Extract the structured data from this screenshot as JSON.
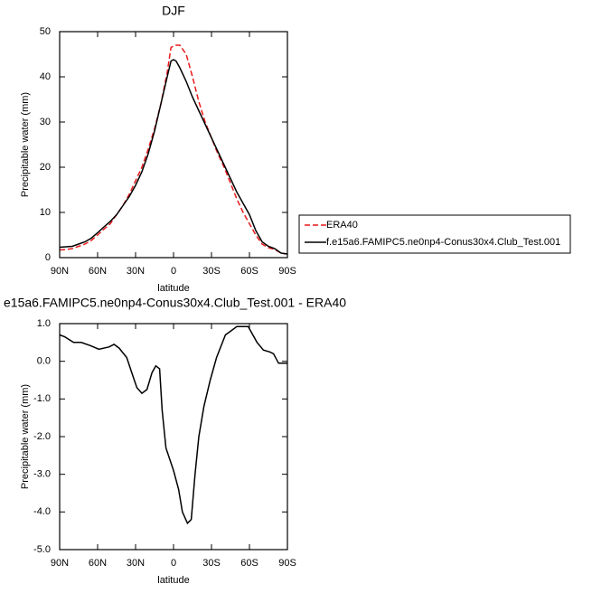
{
  "chart_data": [
    {
      "type": "line",
      "title": "DJF",
      "xlabel": "latitude",
      "ylabel": "Precipitable water (mm)",
      "x": [
        90,
        85,
        80,
        75,
        70,
        65,
        60,
        55,
        50,
        45,
        40,
        35,
        30,
        25,
        20,
        15,
        10,
        5,
        2,
        0,
        -2,
        -5,
        -10,
        -15,
        -20,
        -25,
        -30,
        -35,
        -40,
        -45,
        -50,
        -55,
        -60,
        -65,
        -70,
        -75,
        -80,
        -85,
        -90
      ],
      "xlim": [
        90,
        -90
      ],
      "xticks": [
        {
          "value": 90,
          "label": "90N"
        },
        {
          "value": 60,
          "label": "60N"
        },
        {
          "value": 30,
          "label": "30N"
        },
        0,
        {
          "value": -30,
          "label": "30S"
        },
        {
          "value": -60,
          "label": "60S"
        },
        {
          "value": -90,
          "label": "90S"
        }
      ],
      "ylim": [
        0,
        50
      ],
      "yticks": [
        0,
        10,
        20,
        30,
        40,
        50
      ],
      "legend": "right",
      "series": [
        {
          "name": "ERA40",
          "color": "#e8191c",
          "line_style": "dashed",
          "values": [
            1.7,
            1.8,
            2,
            2.5,
            3,
            3.8,
            5,
            6.3,
            7.5,
            9.5,
            11.5,
            14,
            17,
            20,
            24,
            28.5,
            34,
            41,
            46.5,
            46.8,
            47,
            47,
            45,
            40,
            34.5,
            30,
            26.5,
            23,
            20,
            16.5,
            13,
            10,
            7.5,
            5,
            3,
            2.2,
            1.8,
            1,
            0.8
          ]
        },
        {
          "name": "f.e15a6.FAMIPC5.ne0np4-Conus30x4.Club_Test.001",
          "color": "#000000",
          "line_style": "solid",
          "values": [
            2.3,
            2.4,
            2.5,
            3,
            3.5,
            4.3,
            5.5,
            6.8,
            8,
            9.5,
            11.5,
            13.5,
            16,
            19,
            23,
            28,
            34,
            40,
            43.5,
            43.8,
            43.5,
            42,
            39,
            35.5,
            32.5,
            29.5,
            26.5,
            23.5,
            20.5,
            17.5,
            14.5,
            12,
            9.5,
            6,
            3.5,
            2.5,
            2,
            1,
            0.8
          ]
        }
      ]
    },
    {
      "type": "line",
      "title": "e15a6.FAMIPC5.ne0np4-Conus30x4.Club_Test.001 - ERA40",
      "xlabel": "latitude",
      "ylabel": "Precipitable water (mm)",
      "x": [
        90,
        86,
        79,
        73,
        66,
        59,
        51,
        47,
        43,
        37,
        33,
        29,
        25,
        21,
        17,
        14,
        11,
        9,
        6,
        3,
        0,
        -4,
        -7,
        -11,
        -14,
        -17,
        -20,
        -24,
        -29,
        -34,
        -41,
        -50,
        -59,
        -66,
        -71,
        -76,
        -79,
        -83,
        -90
      ],
      "xlim": [
        90,
        -90
      ],
      "xticks": [
        {
          "value": 90,
          "label": "90N"
        },
        {
          "value": 60,
          "label": "60N"
        },
        {
          "value": 30,
          "label": "30N"
        },
        0,
        {
          "value": -30,
          "label": "30S"
        },
        {
          "value": -60,
          "label": "60S"
        },
        {
          "value": -90,
          "label": "90S"
        }
      ],
      "ylim": [
        -5,
        1
      ],
      "yticks": [
        {
          "value": -5,
          "label": "-5.0"
        },
        {
          "value": -4,
          "label": "-4.0"
        },
        {
          "value": -3,
          "label": "-3.0"
        },
        {
          "value": -2,
          "label": "-2.0"
        },
        {
          "value": -1,
          "label": "-1.0"
        },
        {
          "value": 0,
          "label": "0.0"
        },
        {
          "value": 1,
          "label": "1.0"
        }
      ],
      "series": [
        {
          "color": "#000000",
          "line_style": "solid",
          "values": [
            0.7,
            0.65,
            0.5,
            0.5,
            0.42,
            0.32,
            0.38,
            0.45,
            0.35,
            0.1,
            -0.3,
            -0.7,
            -0.85,
            -0.75,
            -0.3,
            -0.12,
            -0.2,
            -1.3,
            -2.3,
            -2.6,
            -2.9,
            -3.4,
            -4.0,
            -4.3,
            -4.2,
            -3.0,
            -2.0,
            -1.2,
            -0.5,
            0.1,
            0.7,
            0.92,
            0.92,
            0.5,
            0.3,
            0.25,
            0.2,
            -0.05,
            -0.05
          ]
        }
      ]
    }
  ]
}
